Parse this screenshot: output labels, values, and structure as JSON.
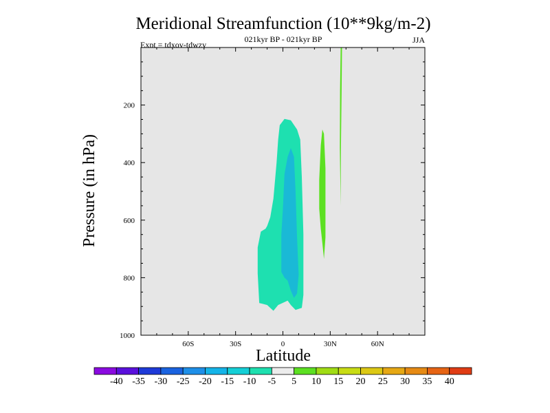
{
  "chart_data": {
    "type": "contour",
    "title": "Meridional Streamfunction (10**9kg/m-2)",
    "subtitle": "021kyr BP - 021kyr BP",
    "left_label": "Expt = tdxov-tdwzv",
    "right_label": "JJA",
    "xlabel": "Latitude",
    "ylabel": "Pressure (in hPa)",
    "xlim": [
      -90,
      90
    ],
    "ylim": [
      1000,
      0
    ],
    "x_ticks": [
      {
        "value": -60,
        "label": "60S"
      },
      {
        "value": -30,
        "label": "30S"
      },
      {
        "value": 0,
        "label": "0"
      },
      {
        "value": 30,
        "label": "30N"
      },
      {
        "value": 60,
        "label": "60N"
      }
    ],
    "y_ticks": [
      {
        "value": 200,
        "label": "200"
      },
      {
        "value": 400,
        "label": "400"
      },
      {
        "value": 600,
        "label": "600"
      },
      {
        "value": 800,
        "label": "800"
      },
      {
        "value": 1000,
        "label": "1000"
      }
    ],
    "background_color": "#e6e6e6",
    "colorbar": {
      "colors": [
        "#8a0ae0",
        "#5a10dc",
        "#1e3ad8",
        "#1a63e0",
        "#1e8fe8",
        "#14b4e8",
        "#14cfd6",
        "#1ee0b0",
        "#ececec",
        "#5ce022",
        "#a0dc14",
        "#c8dc14",
        "#dcc814",
        "#e6a814",
        "#e68a14",
        "#e66414",
        "#e03c14"
      ],
      "labels": [
        "-40",
        "-35",
        "-30",
        "-25",
        "-20",
        "-15",
        "-10",
        "-5",
        "5",
        "10",
        "15",
        "20",
        "25",
        "30",
        "35",
        "40"
      ]
    },
    "contour_regions": [
      {
        "level": "-10 to -5",
        "color": "#1ee0b0",
        "outline": [
          [
            -16,
            785
          ],
          [
            -16,
            695
          ],
          [
            -14,
            640
          ],
          [
            -11,
            630
          ],
          [
            -10,
            620
          ],
          [
            -8,
            590
          ],
          [
            -6,
            525
          ],
          [
            -4,
            400
          ],
          [
            -3,
            320
          ],
          [
            -2,
            270
          ],
          [
            1,
            248
          ],
          [
            5,
            253
          ],
          [
            9,
            285
          ],
          [
            11,
            320
          ],
          [
            12,
            450
          ],
          [
            13,
            650
          ],
          [
            13,
            860
          ],
          [
            12,
            905
          ],
          [
            8,
            912
          ],
          [
            5,
            895
          ],
          [
            3,
            880
          ],
          [
            -3,
            895
          ],
          [
            -6,
            915
          ],
          [
            -10,
            895
          ],
          [
            -15,
            888
          ]
        ]
      },
      {
        "level": "-15 to -10",
        "color": "#1ab9d6",
        "outline": [
          [
            -1,
            780
          ],
          [
            -1,
            650
          ],
          [
            0,
            560
          ],
          [
            1,
            440
          ],
          [
            3,
            380
          ],
          [
            5,
            350
          ],
          [
            7,
            380
          ],
          [
            8,
            500
          ],
          [
            9,
            660
          ],
          [
            10,
            790
          ],
          [
            9,
            855
          ],
          [
            7,
            870
          ],
          [
            5,
            845
          ],
          [
            3,
            810
          ],
          [
            1,
            800
          ]
        ]
      },
      {
        "level": "5 to 10",
        "color": "#5ce022",
        "outline": [
          [
            23,
            560
          ],
          [
            23,
            460
          ],
          [
            24,
            340
          ],
          [
            25,
            285
          ],
          [
            26,
            300
          ],
          [
            27,
            420
          ],
          [
            27,
            560
          ],
          [
            27,
            660
          ],
          [
            26,
            735
          ],
          [
            25,
            680
          ],
          [
            24,
            630
          ]
        ]
      },
      {
        "level": "5 to 10",
        "color": "#5ce022",
        "outline": [
          [
            37,
            0
          ],
          [
            37.5,
            0
          ],
          [
            37.2,
            150
          ],
          [
            36.8,
            350
          ],
          [
            36.6,
            550
          ],
          [
            36.1,
            350
          ],
          [
            36.2,
            150
          ],
          [
            36.6,
            0
          ]
        ]
      }
    ]
  }
}
